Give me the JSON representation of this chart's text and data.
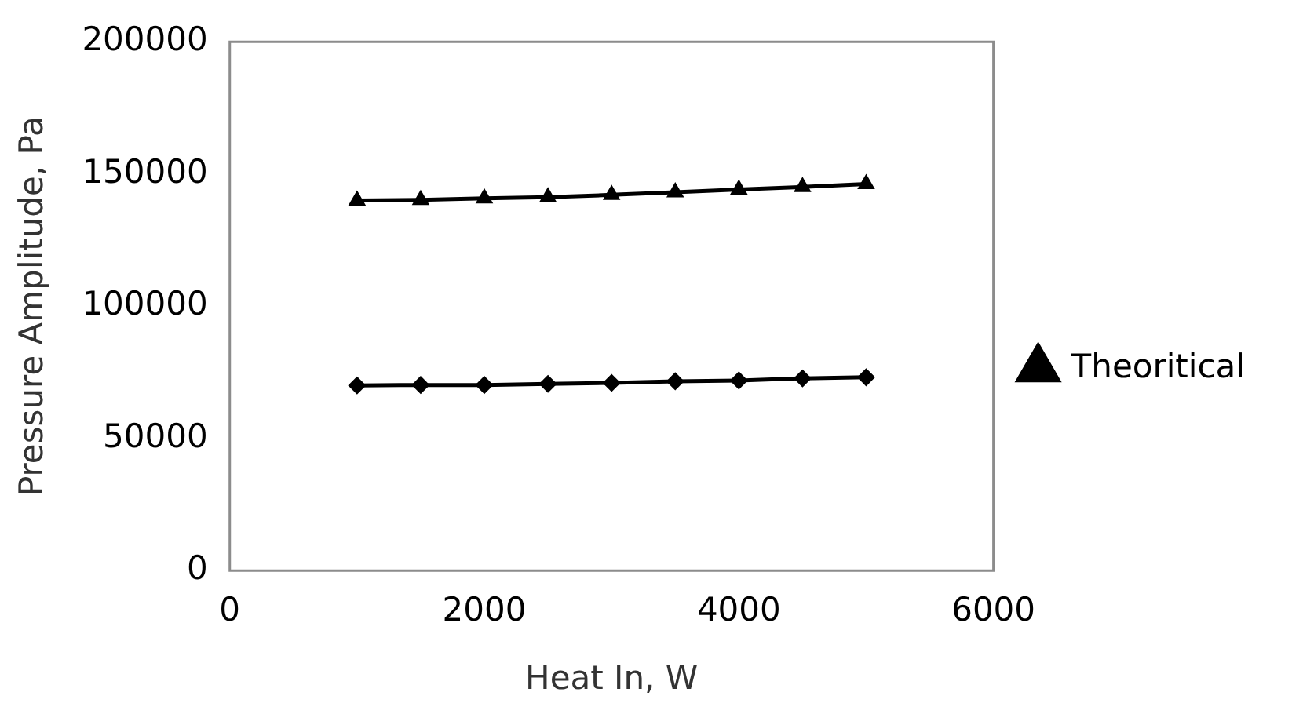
{
  "chart_data": {
    "type": "line",
    "xlabel": "Heat In, W",
    "ylabel": "Pressure Amplitude, Pa",
    "x": [
      1000,
      1500,
      2000,
      2500,
      3000,
      3500,
      4000,
      4500,
      5000
    ],
    "series": [
      {
        "color": "#000000",
        "marker": "diamond",
        "values": [
          70000,
          70200,
          70200,
          70600,
          71000,
          71600,
          71900,
          72700,
          73100
        ]
      },
      {
        "name": "Theoritical",
        "color": "#000000",
        "marker": "triangle",
        "values": [
          140000,
          140200,
          140800,
          141200,
          142100,
          143100,
          144100,
          145100,
          146200
        ]
      }
    ],
    "xlim": [
      0,
      6000
    ],
    "xticks": [
      0,
      2000,
      4000,
      6000
    ],
    "ylim": [
      0,
      200000
    ],
    "yticks": [
      0,
      50000,
      100000,
      150000,
      200000
    ],
    "grid": false,
    "legend": "right",
    "line_style": "solid"
  }
}
